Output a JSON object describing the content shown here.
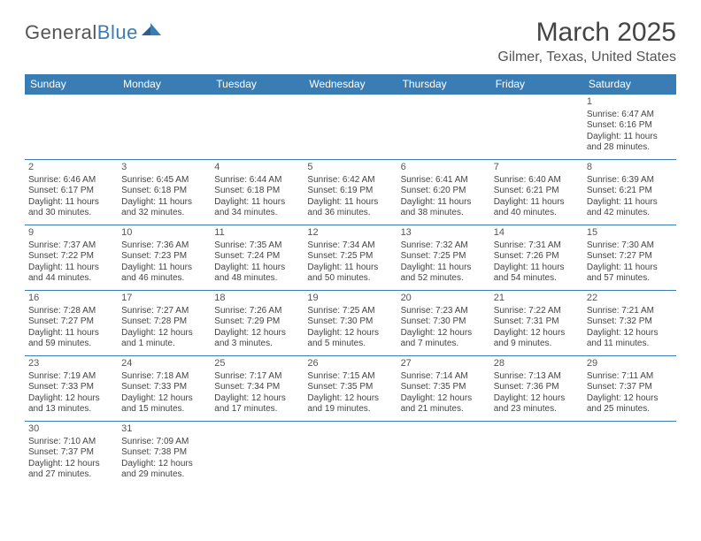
{
  "logo": {
    "part1": "General",
    "part2": "Blue"
  },
  "title": {
    "month": "March 2025",
    "location": "Gilmer, Texas, United States"
  },
  "header_bg": "#3a7db5",
  "header_text": "#ffffff",
  "border_color": "#3a7db5",
  "cell_text": "#444444",
  "weekdays": [
    "Sunday",
    "Monday",
    "Tuesday",
    "Wednesday",
    "Thursday",
    "Friday",
    "Saturday"
  ],
  "weeks": [
    [
      null,
      null,
      null,
      null,
      null,
      null,
      {
        "n": "1",
        "sr": "Sunrise: 6:47 AM",
        "ss": "Sunset: 6:16 PM",
        "dl": "Daylight: 11 hours and 28 minutes."
      }
    ],
    [
      {
        "n": "2",
        "sr": "Sunrise: 6:46 AM",
        "ss": "Sunset: 6:17 PM",
        "dl": "Daylight: 11 hours and 30 minutes."
      },
      {
        "n": "3",
        "sr": "Sunrise: 6:45 AM",
        "ss": "Sunset: 6:18 PM",
        "dl": "Daylight: 11 hours and 32 minutes."
      },
      {
        "n": "4",
        "sr": "Sunrise: 6:44 AM",
        "ss": "Sunset: 6:18 PM",
        "dl": "Daylight: 11 hours and 34 minutes."
      },
      {
        "n": "5",
        "sr": "Sunrise: 6:42 AM",
        "ss": "Sunset: 6:19 PM",
        "dl": "Daylight: 11 hours and 36 minutes."
      },
      {
        "n": "6",
        "sr": "Sunrise: 6:41 AM",
        "ss": "Sunset: 6:20 PM",
        "dl": "Daylight: 11 hours and 38 minutes."
      },
      {
        "n": "7",
        "sr": "Sunrise: 6:40 AM",
        "ss": "Sunset: 6:21 PM",
        "dl": "Daylight: 11 hours and 40 minutes."
      },
      {
        "n": "8",
        "sr": "Sunrise: 6:39 AM",
        "ss": "Sunset: 6:21 PM",
        "dl": "Daylight: 11 hours and 42 minutes."
      }
    ],
    [
      {
        "n": "9",
        "sr": "Sunrise: 7:37 AM",
        "ss": "Sunset: 7:22 PM",
        "dl": "Daylight: 11 hours and 44 minutes."
      },
      {
        "n": "10",
        "sr": "Sunrise: 7:36 AM",
        "ss": "Sunset: 7:23 PM",
        "dl": "Daylight: 11 hours and 46 minutes."
      },
      {
        "n": "11",
        "sr": "Sunrise: 7:35 AM",
        "ss": "Sunset: 7:24 PM",
        "dl": "Daylight: 11 hours and 48 minutes."
      },
      {
        "n": "12",
        "sr": "Sunrise: 7:34 AM",
        "ss": "Sunset: 7:25 PM",
        "dl": "Daylight: 11 hours and 50 minutes."
      },
      {
        "n": "13",
        "sr": "Sunrise: 7:32 AM",
        "ss": "Sunset: 7:25 PM",
        "dl": "Daylight: 11 hours and 52 minutes."
      },
      {
        "n": "14",
        "sr": "Sunrise: 7:31 AM",
        "ss": "Sunset: 7:26 PM",
        "dl": "Daylight: 11 hours and 54 minutes."
      },
      {
        "n": "15",
        "sr": "Sunrise: 7:30 AM",
        "ss": "Sunset: 7:27 PM",
        "dl": "Daylight: 11 hours and 57 minutes."
      }
    ],
    [
      {
        "n": "16",
        "sr": "Sunrise: 7:28 AM",
        "ss": "Sunset: 7:27 PM",
        "dl": "Daylight: 11 hours and 59 minutes."
      },
      {
        "n": "17",
        "sr": "Sunrise: 7:27 AM",
        "ss": "Sunset: 7:28 PM",
        "dl": "Daylight: 12 hours and 1 minute."
      },
      {
        "n": "18",
        "sr": "Sunrise: 7:26 AM",
        "ss": "Sunset: 7:29 PM",
        "dl": "Daylight: 12 hours and 3 minutes."
      },
      {
        "n": "19",
        "sr": "Sunrise: 7:25 AM",
        "ss": "Sunset: 7:30 PM",
        "dl": "Daylight: 12 hours and 5 minutes."
      },
      {
        "n": "20",
        "sr": "Sunrise: 7:23 AM",
        "ss": "Sunset: 7:30 PM",
        "dl": "Daylight: 12 hours and 7 minutes."
      },
      {
        "n": "21",
        "sr": "Sunrise: 7:22 AM",
        "ss": "Sunset: 7:31 PM",
        "dl": "Daylight: 12 hours and 9 minutes."
      },
      {
        "n": "22",
        "sr": "Sunrise: 7:21 AM",
        "ss": "Sunset: 7:32 PM",
        "dl": "Daylight: 12 hours and 11 minutes."
      }
    ],
    [
      {
        "n": "23",
        "sr": "Sunrise: 7:19 AM",
        "ss": "Sunset: 7:33 PM",
        "dl": "Daylight: 12 hours and 13 minutes."
      },
      {
        "n": "24",
        "sr": "Sunrise: 7:18 AM",
        "ss": "Sunset: 7:33 PM",
        "dl": "Daylight: 12 hours and 15 minutes."
      },
      {
        "n": "25",
        "sr": "Sunrise: 7:17 AM",
        "ss": "Sunset: 7:34 PM",
        "dl": "Daylight: 12 hours and 17 minutes."
      },
      {
        "n": "26",
        "sr": "Sunrise: 7:15 AM",
        "ss": "Sunset: 7:35 PM",
        "dl": "Daylight: 12 hours and 19 minutes."
      },
      {
        "n": "27",
        "sr": "Sunrise: 7:14 AM",
        "ss": "Sunset: 7:35 PM",
        "dl": "Daylight: 12 hours and 21 minutes."
      },
      {
        "n": "28",
        "sr": "Sunrise: 7:13 AM",
        "ss": "Sunset: 7:36 PM",
        "dl": "Daylight: 12 hours and 23 minutes."
      },
      {
        "n": "29",
        "sr": "Sunrise: 7:11 AM",
        "ss": "Sunset: 7:37 PM",
        "dl": "Daylight: 12 hours and 25 minutes."
      }
    ],
    [
      {
        "n": "30",
        "sr": "Sunrise: 7:10 AM",
        "ss": "Sunset: 7:37 PM",
        "dl": "Daylight: 12 hours and 27 minutes."
      },
      {
        "n": "31",
        "sr": "Sunrise: 7:09 AM",
        "ss": "Sunset: 7:38 PM",
        "dl": "Daylight: 12 hours and 29 minutes."
      },
      null,
      null,
      null,
      null,
      null
    ]
  ]
}
